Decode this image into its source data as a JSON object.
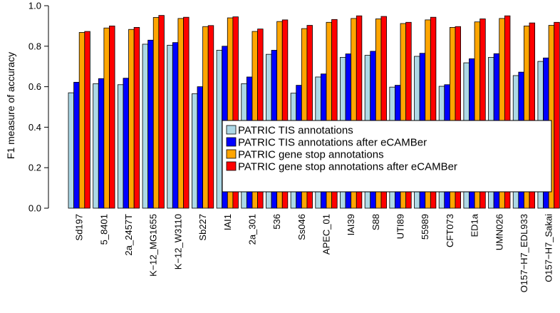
{
  "chart_data": {
    "type": "bar",
    "ylabel": "F1 measure of accuracy",
    "xlabel": "",
    "ylim": [
      0,
      1.0
    ],
    "yticks": [
      "0.0",
      "0.2",
      "0.4",
      "0.6",
      "0.8",
      "1.0"
    ],
    "grid": false,
    "legend_position": "center-right",
    "categories": [
      "Sd197",
      "5_8401",
      "2a_2457T",
      "K-12_MG1655",
      "K-12_W3110",
      "Sb227",
      "IAI1",
      "2a_301",
      "536",
      "Ss046",
      "APEC_01",
      "IAI39",
      "S88",
      "UTI89",
      "55989",
      "CFT073",
      "ED1a",
      "UMN026",
      "O157-H7_EDL933",
      "O157-H7_Sakai"
    ],
    "category_labels": [
      "Sd197",
      "5_8401",
      "2a_2457T",
      "K−12_MG1655",
      "K−12_W3110",
      "Sb227",
      "IAI1",
      "2a_301",
      "536",
      "Ss046",
      "APEC_01",
      "IAI39",
      "S88",
      "UTI89",
      "55989",
      "CFT073",
      "ED1a",
      "UMN026",
      "O157−H7_EDL933",
      "O157−H7_Sakai"
    ],
    "series": [
      {
        "name": "PATRIC TIS annotations",
        "color": "#add8e6",
        "values": [
          0.57,
          0.615,
          0.61,
          0.81,
          0.805,
          0.565,
          0.78,
          0.615,
          0.76,
          0.568,
          0.648,
          0.745,
          0.755,
          0.598,
          0.75,
          0.602,
          0.718,
          0.745,
          0.655,
          0.725
        ]
      },
      {
        "name": "PATRIC TIS annotations after eCAMBer",
        "color": "#0000ff",
        "values": [
          0.622,
          0.64,
          0.642,
          0.83,
          0.818,
          0.6,
          0.8,
          0.648,
          0.78,
          0.607,
          0.663,
          0.762,
          0.775,
          0.607,
          0.765,
          0.61,
          0.738,
          0.763,
          0.672,
          0.742
        ]
      },
      {
        "name": "PATRIC gene stop annotations",
        "color": "#ffa500",
        "values": [
          0.868,
          0.89,
          0.883,
          0.942,
          0.937,
          0.897,
          0.94,
          0.873,
          0.922,
          0.887,
          0.918,
          0.937,
          0.935,
          0.912,
          0.93,
          0.893,
          0.92,
          0.937,
          0.9,
          0.903
        ]
      },
      {
        "name": "PATRIC gene stop annotations after eCAMBer",
        "color": "#ff0000",
        "values": [
          0.873,
          0.9,
          0.893,
          0.952,
          0.943,
          0.902,
          0.945,
          0.885,
          0.93,
          0.903,
          0.932,
          0.95,
          0.947,
          0.918,
          0.943,
          0.897,
          0.935,
          0.95,
          0.915,
          0.918
        ]
      }
    ]
  }
}
